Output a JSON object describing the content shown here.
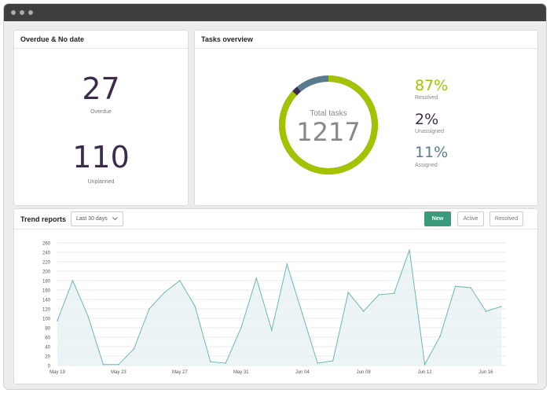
{
  "colors": {
    "accent": "#a4c200",
    "dark_purple": "#3d2b4a",
    "steel_blue": "#5a7a8e",
    "primary_button": "#3a9b7c",
    "chart_line": "#6cb8ad",
    "chart_fill": "#e9f1f5"
  },
  "overdue_card": {
    "title": "Overdue & No date",
    "overdue_value": "27",
    "overdue_label": "Overdue",
    "unplanned_value": "110",
    "unplanned_label": "Unplanned"
  },
  "tasks_card": {
    "title": "Tasks overview",
    "total_label": "Total tasks",
    "total_value": "1217",
    "stats": [
      {
        "value": "87%",
        "label": "Resolved",
        "color": "#a4c200"
      },
      {
        "value": "2%",
        "label": "Unassigned",
        "color": "#3d2b4a"
      },
      {
        "value": "11%",
        "label": "Assigned",
        "color": "#5a7a8e"
      }
    ]
  },
  "trend_card": {
    "title": "Trend reports",
    "range_select": "Last 30 days",
    "range_icon": "chevron-down-icon",
    "buttons": {
      "new": "New",
      "active": "Active",
      "resolved": "Resolved"
    }
  },
  "chart_data": {
    "type": "area",
    "ylim": [
      0,
      260
    ],
    "yticks": [
      0,
      20,
      40,
      60,
      80,
      100,
      120,
      140,
      160,
      180,
      200,
      220,
      240,
      260
    ],
    "x_tick_labels": [
      "May 19",
      "May 23",
      "May 27",
      "May 31",
      "Jun 04",
      "Jun 08",
      "Jun 12",
      "Jun 16"
    ],
    "x_tick_indices": [
      0,
      4,
      8,
      12,
      16,
      20,
      24,
      28
    ],
    "dates": [
      "May 19",
      "May 20",
      "May 21",
      "May 22",
      "May 23",
      "May 24",
      "May 25",
      "May 26",
      "May 27",
      "May 28",
      "May 29",
      "May 30",
      "May 31",
      "Jun 01",
      "Jun 02",
      "Jun 03",
      "Jun 04",
      "Jun 05",
      "Jun 06",
      "Jun 07",
      "Jun 08",
      "Jun 09",
      "Jun 10",
      "Jun 11",
      "Jun 12",
      "Jun 13",
      "Jun 14",
      "Jun 15",
      "Jun 16",
      "Jun 17"
    ],
    "values": [
      95,
      180,
      105,
      2,
      2,
      35,
      120,
      155,
      180,
      125,
      8,
      5,
      80,
      185,
      75,
      215,
      110,
      5,
      10,
      155,
      115,
      150,
      153,
      245,
      2,
      62,
      168,
      165,
      115,
      125
    ],
    "grid": true
  }
}
